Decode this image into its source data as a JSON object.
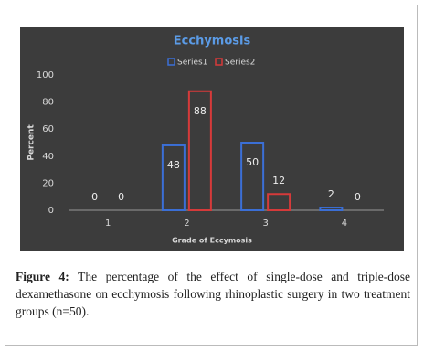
{
  "chart_data": {
    "type": "bar",
    "title": "Ecchymosis",
    "categories": [
      "1",
      "2",
      "3",
      "4"
    ],
    "series": [
      {
        "name": "Series1",
        "color": "#3b6fd6",
        "values": [
          0,
          48,
          50,
          2
        ]
      },
      {
        "name": "Series2",
        "color": "#d63a3a",
        "values": [
          0,
          88,
          12,
          0
        ]
      }
    ],
    "x_label": "Grade of Eccymosis",
    "y_label": "Percent",
    "ylim": [
      0,
      100
    ],
    "yticks": [
      0,
      20,
      40,
      60,
      80,
      100
    ],
    "grid": false,
    "legend": "top-right"
  },
  "caption_label": "Figure 4:",
  "caption_text": "The percentage of the effect of single-dose and triple-dose dexamethasone on ecchymosis following rhinoplastic surgery in two treatment groups (n=50)."
}
